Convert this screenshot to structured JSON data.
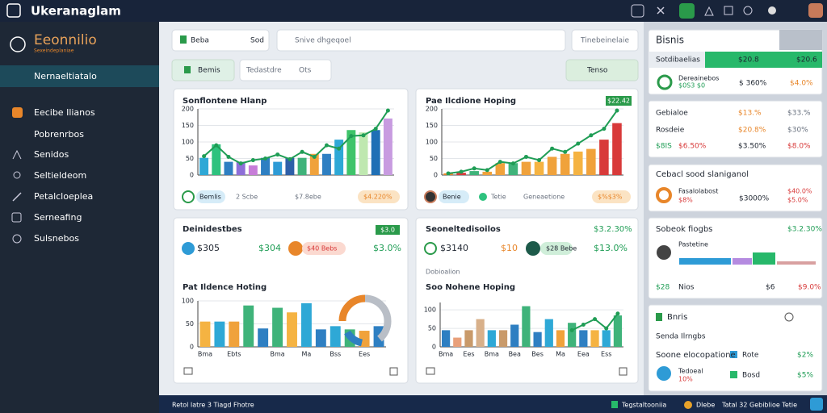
{
  "topbar": {
    "title": "Ukeranaglam"
  },
  "sidebar": {
    "brand": "Eeonnilio",
    "tagline": "Sexeindeplaniae",
    "active": "Nernaeltiatalo",
    "items": [
      "Eecibe Ilianos",
      "Pobrenrbos",
      "Senidos",
      "Seltieldeom",
      "Petalcloeplea",
      "Serneafing",
      "Sulsnebos"
    ]
  },
  "toolbar": {
    "select": "Beba",
    "select_value": "Sod",
    "search": "Snive dhgeqoel",
    "search_button": "Tinebeinelaie",
    "tab": "Bemis",
    "filter": "Tedastdre",
    "filter_value": "Ots",
    "action": "Tenso"
  },
  "charts": [
    {
      "title": "Sonflontene Hlanp",
      "ylim": [
        0,
        200
      ],
      "yticks": [
        0,
        50,
        100,
        150,
        200
      ],
      "bars": [
        52,
        93,
        40,
        40,
        29,
        52,
        40,
        52,
        52,
        64,
        64,
        107,
        136,
        129,
        136,
        171
      ],
      "colors": [
        "#2ea8d6",
        "#2ec27e",
        "#2e7fc2",
        "#8e6fd8",
        "#c77dd8",
        "#2e7fc2",
        "#2e9bd6",
        "#2e5fa8",
        "#3fb37a",
        "#f0a23b",
        "#2e7fc2",
        "#2ea8d6",
        "#3fc46a",
        "#bfe8b0",
        "#1f6fb5",
        "#c89be0"
      ],
      "line": [
        57,
        90,
        55,
        35,
        45,
        50,
        62,
        48,
        70,
        55,
        90,
        80,
        118,
        120,
        140,
        195
      ],
      "footer": [
        "Bemlis",
        "2 Scbe",
        "$7.8ebe",
        "$4.220%"
      ]
    },
    {
      "title": "Pae Ilcdione Hoping",
      "badge": "$22.42",
      "ylim": [
        0,
        200
      ],
      "yticks": [
        0,
        50,
        100,
        150,
        200
      ],
      "bars": [
        5,
        7,
        12,
        10,
        36,
        36,
        40,
        40,
        55,
        64,
        71,
        79,
        107,
        157
      ],
      "colors": [
        "#e8862a",
        "#d83a3a",
        "#3fb37a",
        "#f0a23b",
        "#f0a23b",
        "#3fb37a",
        "#f0a23b",
        "#f5b342",
        "#f0a23b",
        "#f0a23b",
        "#f5b342",
        "#f0a23b",
        "#d83a3a",
        "#d83a3a"
      ],
      "line": [
        5,
        10,
        20,
        15,
        40,
        35,
        55,
        45,
        80,
        70,
        95,
        120,
        140,
        195
      ],
      "footer": [
        "Benie",
        "Tetie",
        "Geneaetione",
        "$%$3%"
      ]
    },
    {
      "title": "Deinidestbes",
      "badge": "$3.0",
      "stats": [
        "$305",
        "$304",
        "$40 Bebs",
        "$3.0%"
      ],
      "subtitle": "Pat Ildence Hoting",
      "ylim": [
        0,
        100
      ],
      "yticks": [
        0,
        50,
        100
      ],
      "bars": [
        55,
        55,
        55,
        90,
        40,
        85,
        75,
        95,
        38,
        45,
        38,
        35,
        45
      ],
      "colors": [
        "#f5b342",
        "#2ea8d6",
        "#f0a23b",
        "#3fb37a",
        "#2e7fc2",
        "#3fb37a",
        "#f5b342",
        "#2ea8d6",
        "#2e7fc2",
        "#2ea8d6",
        "#3fb37a",
        "#f0a23b",
        "#2e7fc2"
      ],
      "categories": [
        "Bma",
        null,
        "Ebts",
        null,
        null,
        "Bma",
        null,
        "Ma",
        null,
        "Bss",
        null,
        "Ees",
        null
      ]
    },
    {
      "title": "Seoneltedisoilos",
      "badge": "$3.2.30%",
      "stats": [
        "$3140",
        "$10",
        "$28 Bebe",
        "$13.0%"
      ],
      "caption": "Dobioalion",
      "subtitle": "Soo Nohene Hoping",
      "ylim": [
        0,
        120
      ],
      "yticks": [
        0,
        50,
        100
      ],
      "bars": [
        45,
        25,
        45,
        75,
        45,
        45,
        60,
        110,
        40,
        75,
        45,
        65,
        45,
        45,
        45,
        85
      ],
      "colors": [
        "#2e7fc2",
        "#e9a07a",
        "#c99a6a",
        "#d8b08a",
        "#2ea8d6",
        "#c99a6a",
        "#2e7fc2",
        "#3fb37a",
        "#2e7fc2",
        "#2ea8d6",
        "#f0a23b",
        "#3fb37a",
        "#2e7fc2",
        "#f5b342",
        "#2ea8d6",
        "#3fb37a"
      ],
      "line": [
        null,
        null,
        null,
        null,
        null,
        null,
        null,
        null,
        null,
        null,
        null,
        45,
        60,
        75,
        50,
        90
      ],
      "categories": [
        "Bma",
        null,
        "Ees",
        null,
        "Bma",
        null,
        "Bea",
        null,
        "Bes",
        null,
        "Ma",
        null,
        "Eea",
        null,
        "Ess",
        null
      ]
    }
  ],
  "right": {
    "title": "Bisnis",
    "tab": "Sotdibaelias",
    "tab_values": [
      "$20.8",
      "$20.6"
    ],
    "summary": {
      "label": "Dereainebos",
      "value": "$0S3 $0",
      "pct": "$ 360%",
      "change": "$4.0%"
    },
    "metrics": [
      [
        "Gebialoe",
        "$13.%",
        "$33.%"
      ],
      [
        "Rosdeie",
        "$20.8%",
        "$30%"
      ],
      [
        "$8IS",
        "$6.50%",
        "$3.50%",
        "$8.0%"
      ]
    ],
    "social": {
      "title": "Cebacl sood slaniganol",
      "label": "Fasalolabost",
      "value": "$8%",
      "pct": "$3000%",
      "change1": "$40.0%",
      "change2": "$5.0%"
    },
    "stock": {
      "title": "Sobeok fiogbs",
      "badge": "$3.2.30%",
      "label": "Pastetine",
      "foot": [
        "$28",
        "Nios",
        "$6",
        "$9.0%"
      ]
    },
    "list": {
      "title": "Bnris",
      "subtitle": "Senda Ilrngbs",
      "rows": [
        [
          "Soone elocopatione",
          "Rote",
          "$2%"
        ],
        [
          "Tedoeal",
          "10%",
          "Bosd",
          "$5%"
        ]
      ]
    }
  },
  "footer": {
    "left": "Retol Iatre 3 Tiagd Fhotre",
    "status": "Tegstaltooniia",
    "user": "Dlebe",
    "count": "Tatal 32",
    "info": "Gebiblioe Tetie"
  }
}
